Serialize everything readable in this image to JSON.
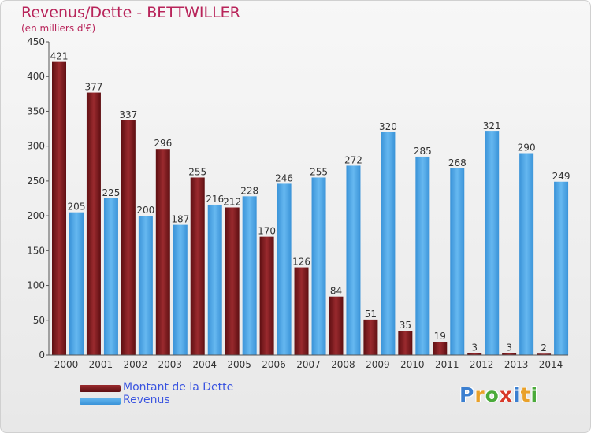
{
  "chart_data": {
    "type": "bar",
    "title": "Revenus/Dette - BETTWILLER",
    "subtitle": "(en milliers d'€)",
    "categories": [
      "2000",
      "2001",
      "2002",
      "2003",
      "2004",
      "2005",
      "2006",
      "2007",
      "2008",
      "2009",
      "2010",
      "2011",
      "2012",
      "2013",
      "2014"
    ],
    "series": [
      {
        "name": "Montant de la Dette",
        "color": "#7a1a1e",
        "values": [
          421,
          377,
          337,
          296,
          255,
          212,
          170,
          126,
          84,
          51,
          35,
          19,
          3,
          3,
          2
        ]
      },
      {
        "name": "Revenus",
        "color": "#4ea7e8",
        "values": [
          205,
          225,
          200,
          187,
          216,
          228,
          246,
          255,
          272,
          320,
          285,
          268,
          321,
          290,
          249
        ]
      }
    ],
    "ylim": [
      0,
      450
    ],
    "yticks": [
      0,
      50,
      100,
      150,
      200,
      250,
      300,
      350,
      400,
      450
    ],
    "grid": false,
    "legend_position": "bottom-left"
  },
  "logo": {
    "letters": [
      "P",
      "r",
      "o",
      "x",
      "i",
      "t",
      "i"
    ],
    "colors": [
      "#3b7fd0",
      "#e9a12a",
      "#4aaa3a",
      "#d83a2a",
      "#3b7fd0",
      "#e9a12a",
      "#4aaa3a"
    ]
  }
}
